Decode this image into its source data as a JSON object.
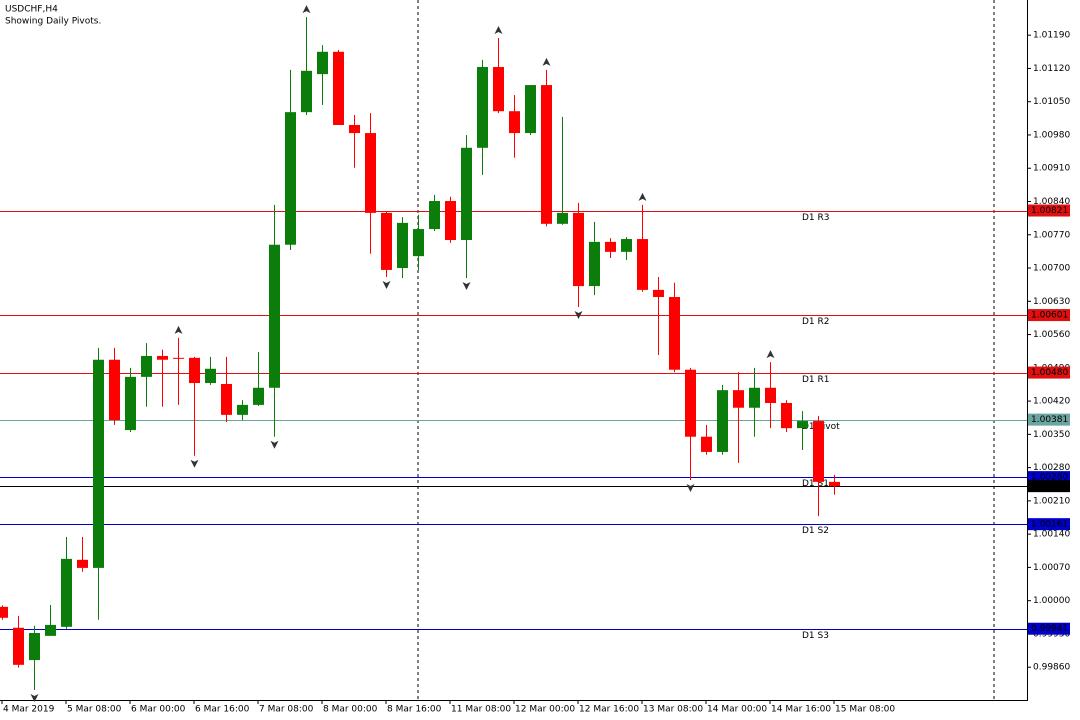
{
  "chart_data": {
    "type": "candlestick",
    "title": "USDCHF,H4",
    "subtitle": "Showing Daily Pivots.",
    "categories": [
      "4 Mar 2019",
      null,
      null,
      null,
      "5 Mar 08:00",
      null,
      null,
      null,
      "6 Mar 00:00",
      null,
      null,
      null,
      "6 Mar 16:00",
      null,
      null,
      null,
      "7 Mar 08:00",
      null,
      null,
      null,
      "8 Mar 00:00",
      null,
      null,
      null,
      "8 Mar 16:00",
      null,
      null,
      null,
      "11 Mar 08:00",
      null,
      null,
      null,
      "12 Mar 00:00",
      null,
      null,
      null,
      "12 Mar 16:00",
      null,
      null,
      null,
      "13 Mar 08:00",
      null,
      null,
      null,
      "14 Mar 00:00",
      null,
      null,
      null,
      "14 Mar 16:00",
      null,
      null,
      null,
      "15 Mar 08:00"
    ],
    "open": [
      0.99987,
      0.99943,
      0.99875,
      0.99926,
      0.99945,
      1.00086,
      1.00069,
      1.00507,
      1.00359,
      1.00471,
      1.00515,
      1.00511,
      1.00511,
      1.00458,
      1.00456,
      1.00391,
      1.00412,
      1.00448,
      1.00749,
      1.01028,
      1.01108,
      1.01155,
      1.01001,
      1.00984,
      1.00816,
      1.007,
      1.00725,
      1.00782,
      1.00841,
      1.00759,
      1.00953,
      1.01123,
      1.0103,
      1.00984,
      1.01085,
      1.00793,
      1.00816,
      1.00662,
      1.00755,
      1.00734,
      1.00761,
      1.00654,
      1.00639,
      1.00486,
      1.00345,
      1.00313,
      1.00443,
      1.00406,
      1.00448,
      1.00416,
      1.00363,
      1.00378,
      1.0025
    ],
    "high": [
      0.9999,
      0.99968,
      0.99947,
      0.99991,
      1.00134,
      1.00134,
      1.00532,
      1.00532,
      1.0049,
      1.00542,
      1.00528,
      1.00553,
      1.00513,
      1.00513,
      1.00513,
      1.00422,
      1.00523,
      1.00833,
      1.01117,
      1.01228,
      1.01169,
      1.01159,
      1.01022,
      1.01026,
      1.0082,
      1.00807,
      1.00812,
      1.00854,
      1.0085,
      1.0098,
      1.01138,
      1.01184,
      1.01064,
      1.01085,
      1.01117,
      1.01018,
      1.00837,
      1.00797,
      1.00763,
      1.00765,
      1.00833,
      1.00681,
      1.00669,
      1.0049,
      1.0037,
      1.00454,
      1.00481,
      1.0049,
      1.00502,
      1.00422,
      1.00399,
      1.00389,
      1.00265
    ],
    "low": [
      0.9996,
      0.99859,
      0.99812,
      0.99926,
      0.99941,
      1.00061,
      0.9996,
      1.0037,
      1.00355,
      1.00408,
      1.00408,
      1.00412,
      1.00305,
      1.00454,
      1.00376,
      1.0038,
      1.0041,
      1.00345,
      1.00738,
      1.01022,
      1.01043,
      1.01001,
      1.00911,
      1.0073,
      1.00681,
      1.00679,
      1.00696,
      1.00778,
      1.00753,
      1.00679,
      1.00896,
      1.01026,
      1.00932,
      1.0098,
      1.00788,
      1.00791,
      1.00618,
      1.00643,
      1.00721,
      1.00717,
      1.0065,
      1.00517,
      1.00481,
      1.00254,
      1.00307,
      1.00307,
      1.0029,
      1.00345,
      1.00363,
      1.00355,
      1.00317,
      1.00178,
      1.00223
    ],
    "close": [
      0.99964,
      0.99865,
      0.99932,
      0.99949,
      1.00088,
      1.00069,
      1.00507,
      1.0038,
      1.00471,
      1.00515,
      1.00507,
      1.00509,
      1.00458,
      1.00488,
      1.00391,
      1.00412,
      1.00448,
      1.00749,
      1.01028,
      1.01115,
      1.01155,
      1.01001,
      1.00984,
      1.00816,
      1.00696,
      1.00795,
      1.00782,
      1.00841,
      1.00759,
      1.00953,
      1.01123,
      1.0103,
      1.00984,
      1.01085,
      1.00793,
      1.00816,
      1.00662,
      1.00755,
      1.00734,
      1.00761,
      1.00654,
      1.00639,
      1.00486,
      1.00345,
      1.00313,
      1.00443,
      1.00406,
      1.00448,
      1.00416,
      1.00363,
      1.00378,
      1.0025,
      1.00241
    ],
    "up_color": "#0a7d0a",
    "down_color": "#ff0000",
    "fractals_up": [
      11,
      19,
      31,
      34,
      40,
      48
    ],
    "fractals_down": [
      2,
      12,
      17,
      24,
      29,
      36,
      43
    ],
    "pivots": {
      "names": [
        "D1 R3",
        "D1 R2",
        "D1 R1",
        "D1 Pivot",
        "D1 S1",
        "D1 S2",
        "D1 S3"
      ],
      "values": [
        1.00821,
        1.00601,
        1.0048,
        1.00381,
        1.0026,
        1.00161,
        0.99941
      ],
      "value_labels": [
        "1.00821",
        "1.00601",
        "1.00480",
        "1.00381",
        "1.00260",
        "1.00161",
        "0.99941"
      ],
      "colors": [
        "#e01010",
        "#e01010",
        "#e01010",
        "#6aa5a0",
        "#0000c8",
        "#0000c8",
        "#0000c8"
      ]
    },
    "current_price": 1.00241,
    "ylim": [
      0.99791,
      1.01264
    ],
    "yticks": [
      {
        "value": 1.0119,
        "label": "1.01190"
      },
      {
        "value": 1.0112,
        "label": "1.01120"
      },
      {
        "value": 1.0105,
        "label": "1.01050"
      },
      {
        "value": 1.0098,
        "label": "1.00980"
      },
      {
        "value": 1.0091,
        "label": "1.00910"
      },
      {
        "value": 1.0084,
        "label": "1.00840"
      },
      {
        "value": 1.0077,
        "label": "1.00770"
      },
      {
        "value": 1.007,
        "label": "1.00700"
      },
      {
        "value": 1.0063,
        "label": "1.00630"
      },
      {
        "value": 1.0056,
        "label": "1.00560"
      },
      {
        "value": 1.0049,
        "label": "1.00490"
      },
      {
        "value": 1.0042,
        "label": "1.00420"
      },
      {
        "value": 1.0035,
        "label": "1.00350"
      },
      {
        "value": 1.0028,
        "label": "1.00280"
      },
      {
        "value": 1.0021,
        "label": "1.00210"
      },
      {
        "value": 1.0014,
        "label": "1.00140"
      },
      {
        "value": 1.0007,
        "label": "1.00070"
      },
      {
        "value": 1,
        "label": "1.00000"
      },
      {
        "value": 0.9993,
        "label": "0.99930"
      },
      {
        "value": 0.9986,
        "label": "0.99860"
      }
    ]
  }
}
